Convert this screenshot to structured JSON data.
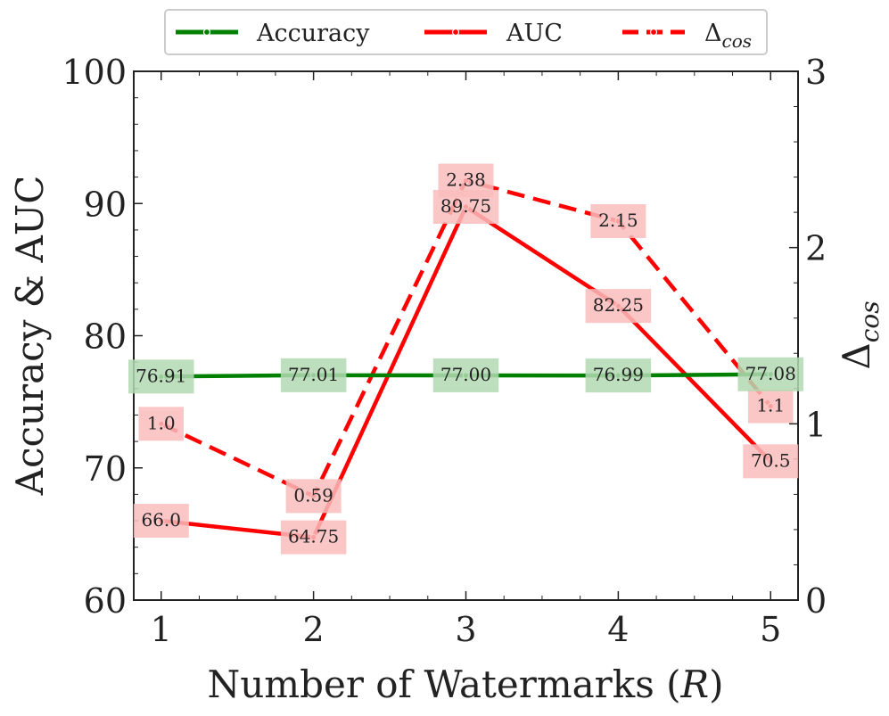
{
  "chart_data": {
    "type": "line",
    "x": [
      1,
      2,
      3,
      4,
      5
    ],
    "xlabel_text": "Number of Watermarks (",
    "xlabel_var": "R",
    "xlabel_close": ")",
    "ylabel": "Accuracy & AUC",
    "y2label_main": "Δ",
    "y2label_sub": "cos",
    "ylim": [
      60,
      100
    ],
    "y2lim": [
      0,
      3
    ],
    "xticks": [
      "1",
      "2",
      "3",
      "4",
      "5"
    ],
    "yticks": [
      "60",
      "70",
      "80",
      "90",
      "100"
    ],
    "y2ticks": [
      "0",
      "1",
      "2",
      "3"
    ],
    "legend_position": "top-center",
    "series": [
      {
        "name": "Accuracy",
        "axis": "left",
        "values": [
          76.91,
          77.01,
          77.0,
          76.99,
          77.08
        ],
        "labels": [
          "76.91",
          "77.01",
          "77.00",
          "76.99",
          "77.08"
        ],
        "color": "#008000",
        "label_bg": "#b3d9b3",
        "style": "solid"
      },
      {
        "name": "AUC",
        "axis": "left",
        "values": [
          66.0,
          64.75,
          89.75,
          82.25,
          70.5
        ],
        "labels": [
          "66.0",
          "64.75",
          "89.75",
          "82.25",
          "70.5"
        ],
        "color": "#ff0000",
        "label_bg": "#f9bcbc",
        "style": "solid"
      },
      {
        "name_main": "Δ",
        "name_sub": "cos",
        "axis": "right",
        "values": [
          1.0,
          0.59,
          2.38,
          2.15,
          1.1
        ],
        "labels": [
          "1.0",
          "0.59",
          "2.38",
          "2.15",
          "1.1"
        ],
        "color": "#ff0000",
        "label_bg": "#f9bcbc",
        "style": "dashed"
      }
    ]
  }
}
